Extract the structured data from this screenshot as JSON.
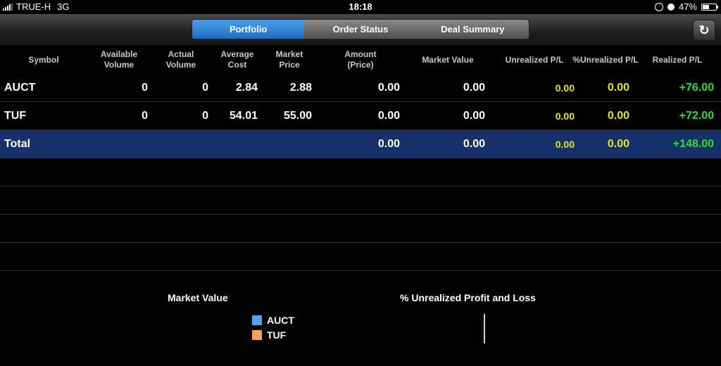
{
  "status_bar": {
    "carrier": "TRUE-H",
    "network": "3G",
    "time": "18:18",
    "battery": "47%"
  },
  "tabs": [
    {
      "label": "Portfolio",
      "active": true
    },
    {
      "label": "Order Status",
      "active": false
    },
    {
      "label": "Deal Summary",
      "active": false
    }
  ],
  "refresh_icon": "refresh-icon",
  "table": {
    "headers": {
      "symbol": "Symbol",
      "available_volume": "Available\nVolume",
      "actual_volume": "Actual\nVolume",
      "average_cost": "Average\nCost",
      "market_price": "Market\nPrice",
      "amount": "Amount\n(Price)",
      "market_value": "Market Value",
      "unrealized_pl": "Unrealized P/L",
      "pct_unrealized_pl": "%Unrealized P/L",
      "realized_pl": "Realized P/L"
    },
    "rows": [
      {
        "symbol": "AUCT",
        "available_volume": "0",
        "actual_volume": "0",
        "average_cost": "2.84",
        "market_price": "2.88",
        "amount": "0.00",
        "market_value": "0.00",
        "unrealized_pl": "0.00",
        "pct_unrealized_pl": "0.00",
        "realized_pl": "+76.00"
      },
      {
        "symbol": "TUF",
        "available_volume": "0",
        "actual_volume": "0",
        "average_cost": "54.01",
        "market_price": "55.00",
        "amount": "0.00",
        "market_value": "0.00",
        "unrealized_pl": "0.00",
        "pct_unrealized_pl": "0.00",
        "realized_pl": "+72.00"
      }
    ],
    "total": {
      "label": "Total",
      "amount": "0.00",
      "market_value": "0.00",
      "unrealized_pl": "0.00",
      "pct_unrealized_pl": "0.00",
      "realized_pl": "+148.00"
    }
  },
  "charts": {
    "market_value_title": "Market Value",
    "legend": [
      {
        "label": "AUCT",
        "color": "#4da3f5"
      },
      {
        "label": "TUF",
        "color": "#f5a050"
      }
    ],
    "unrealized_title": "% Unrealized Profit and Loss"
  },
  "colors": {
    "accent": "#1a6fc2",
    "total_row": "#16306a",
    "unrealized": "#e6e61e",
    "realized_positive": "#2edc2e"
  }
}
